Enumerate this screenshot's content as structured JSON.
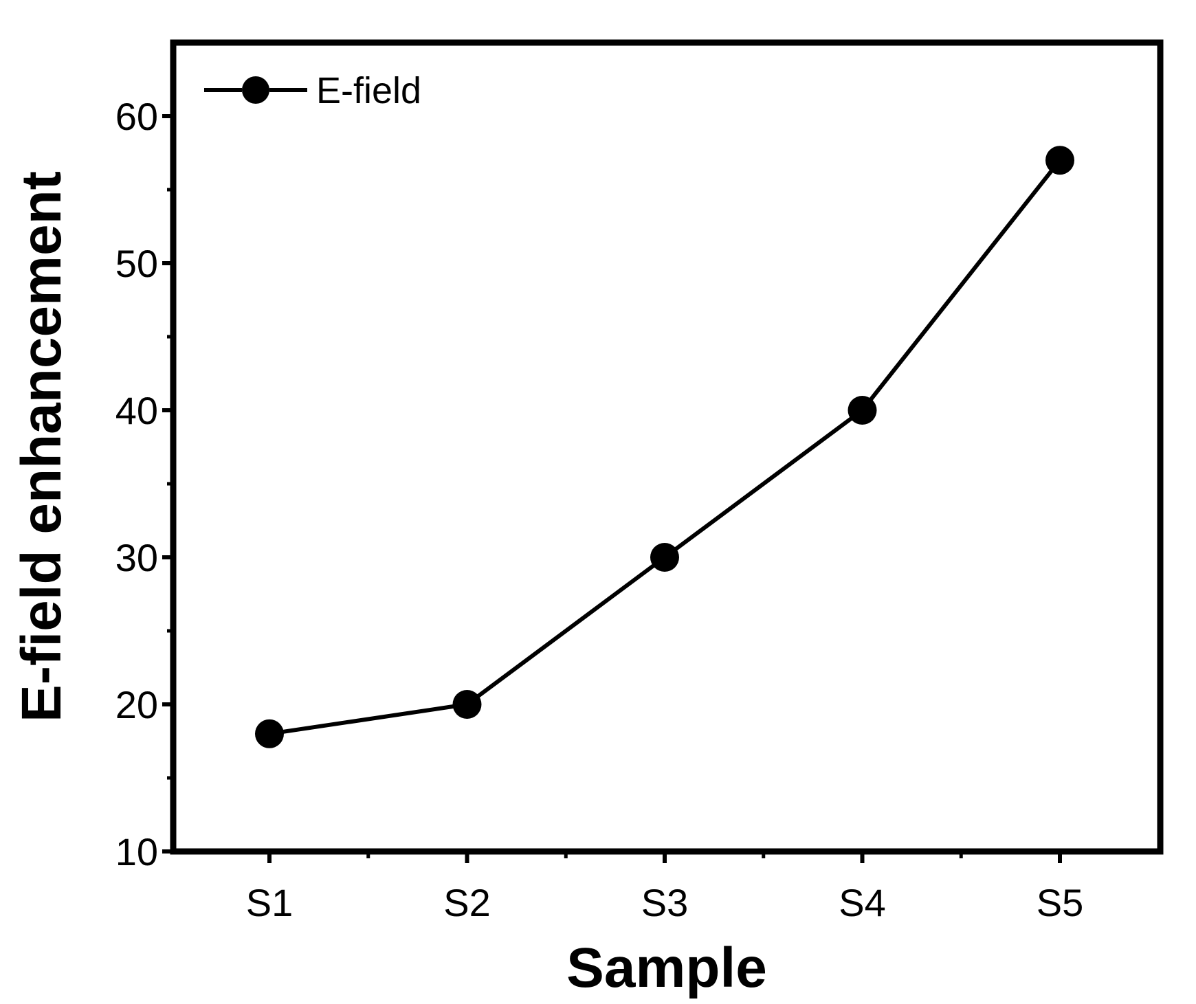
{
  "chart_data": {
    "type": "line",
    "categories": [
      "S1",
      "S2",
      "S3",
      "S4",
      "S5"
    ],
    "series": [
      {
        "name": "E-field",
        "values": [
          18,
          20,
          30,
          40,
          57
        ],
        "color": "#000000",
        "marker": "filled-circle"
      }
    ],
    "xlabel": "Sample",
    "ylabel": "E-field enhancement",
    "ylim": [
      10,
      65
    ],
    "yticks": [
      10,
      20,
      30,
      40,
      50,
      60
    ],
    "grid": false,
    "legend_position": "top-left"
  }
}
